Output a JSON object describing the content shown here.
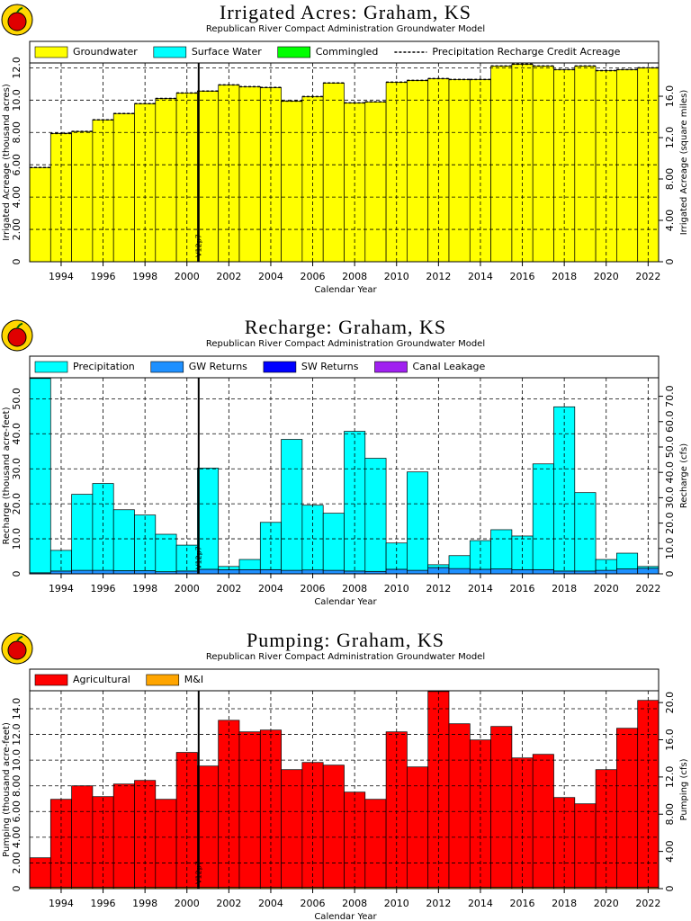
{
  "chart_data": [
    {
      "type": "bar",
      "title": "Irrigated Acres: Graham, KS",
      "subtitle": "Republican River Compact Administration Groundwater Model",
      "xlabel": "Calendar Year",
      "ylabel": "Irrigated Acreage (thousand acres)",
      "y2label": "Irrigated Acreage (square miles)",
      "x": [
        1993,
        1994,
        1995,
        1996,
        1997,
        1998,
        1999,
        2000,
        2001,
        2002,
        2003,
        2004,
        2005,
        2006,
        2007,
        2008,
        2009,
        2010,
        2011,
        2012,
        2013,
        2014,
        2015,
        2016,
        2017,
        2018,
        2019,
        2020,
        2021,
        2022
      ],
      "series": [
        {
          "name": "Groundwater",
          "color": "#ffff00",
          "values": [
            5.83,
            7.94,
            8.06,
            8.78,
            9.17,
            9.78,
            10.1,
            10.44,
            10.56,
            10.94,
            10.83,
            10.78,
            9.94,
            10.22,
            11.06,
            9.83,
            9.89,
            11.11,
            11.22,
            11.33,
            11.28,
            11.28,
            12.11,
            12.22,
            12.11,
            11.89,
            12.11,
            11.83,
            11.89,
            12.0
          ]
        },
        {
          "name": "Surface Water",
          "color": "#00ffff",
          "values": [
            0,
            0,
            0,
            0,
            0,
            0,
            0,
            0,
            0,
            0,
            0,
            0,
            0,
            0,
            0,
            0,
            0,
            0,
            0,
            0,
            0,
            0,
            0,
            0,
            0,
            0,
            0,
            0,
            0,
            0
          ]
        },
        {
          "name": "Commingled",
          "color": "#00ff00",
          "values": [
            0,
            0,
            0,
            0,
            0,
            0,
            0,
            0,
            0,
            0,
            0,
            0,
            0,
            0,
            0,
            0,
            0,
            0,
            0,
            0,
            0,
            0,
            0,
            0,
            0,
            0,
            0,
            0,
            0,
            0
          ]
        },
        {
          "name": "Precipitation Recharge Credit Acreage",
          "color": "#000000",
          "mark": "step-line",
          "values": [
            5.83,
            7.94,
            8.06,
            8.78,
            9.17,
            9.78,
            10.1,
            10.44,
            10.56,
            10.94,
            10.83,
            10.78,
            9.94,
            10.22,
            11.06,
            9.83,
            9.89,
            11.11,
            11.22,
            11.33,
            11.28,
            11.28,
            12.11,
            12.22,
            12.11,
            11.89,
            12.11,
            11.83,
            11.89,
            12.0
          ]
        }
      ],
      "xlim": [
        1992.5,
        2022.5
      ],
      "xticks": [
        1994,
        1996,
        1998,
        2000,
        2002,
        2004,
        2006,
        2008,
        2010,
        2012,
        2014,
        2016,
        2018,
        2020,
        2022
      ],
      "ylim": [
        0,
        12.3
      ],
      "yticks": [
        0,
        {
          "value": 2,
          "label": "2.00"
        },
        {
          "value": 4,
          "label": "4.00"
        },
        {
          "value": 6,
          "label": "6.00"
        },
        {
          "value": 8,
          "label": "8.00"
        },
        {
          "value": 10,
          "label": "10.0"
        },
        {
          "value": 12,
          "label": "12.0"
        }
      ],
      "y2lim": [
        0,
        19.22
      ],
      "y2ticks": [
        0,
        {
          "value": 4,
          "label": "4.00"
        },
        {
          "value": 8,
          "label": "8.00"
        },
        {
          "value": 12,
          "label": "12.0"
        },
        {
          "value": 16,
          "label": "16.0"
        }
      ],
      "grid": true,
      "annotations": [
        {
          "x": 2000.56,
          "text": "V12p7"
        }
      ]
    },
    {
      "type": "bar",
      "title": "Recharge: Graham, KS",
      "subtitle": "Republican River Compact Administration Groundwater Model",
      "xlabel": "Calendar Year",
      "ylabel": "Recharge (thousand acre-feet)",
      "y2label": "Recharge (cfs)",
      "x": [
        1993,
        1994,
        1995,
        1996,
        1997,
        1998,
        1999,
        2000,
        2001,
        2002,
        2003,
        2004,
        2005,
        2006,
        2007,
        2008,
        2009,
        2010,
        2011,
        2012,
        2013,
        2014,
        2015,
        2016,
        2017,
        2018,
        2019,
        2020,
        2021,
        2022
      ],
      "series": [
        {
          "name": "Precipitation",
          "color": "#00ffff",
          "values": [
            55.5,
            5.9,
            21.7,
            24.8,
            17.4,
            15.9,
            10.7,
            7.4,
            28.9,
            0.9,
            2.9,
            13.5,
            37.4,
            18.5,
            16.3,
            39.9,
            32.3,
            7.5,
            28.1,
            0.8,
            3.7,
            8.2,
            11.2,
            9.6,
            30.2,
            46.9,
            22.4,
            3.1,
            4.5,
            0.5
          ]
        },
        {
          "name": "GW Returns",
          "color": "#1e90ff",
          "values": [
            0.3,
            0.8,
            1.0,
            1.0,
            0.9,
            0.9,
            0.6,
            0.8,
            1.3,
            1.2,
            1.2,
            1.2,
            1.0,
            1.1,
            1.0,
            0.8,
            0.7,
            1.3,
            1.0,
            1.8,
            1.5,
            1.3,
            1.4,
            1.2,
            1.2,
            0.8,
            0.8,
            1.0,
            1.4,
            1.6
          ]
        },
        {
          "name": "SW Returns",
          "color": "#0000ff",
          "values": [
            0,
            0,
            0,
            0,
            0,
            0,
            0,
            0,
            0,
            0,
            0,
            0,
            0,
            0,
            0,
            0,
            0,
            0,
            0,
            0,
            0,
            0,
            0,
            0,
            0,
            0,
            0,
            0,
            0,
            0
          ]
        },
        {
          "name": "Canal Leakage",
          "color": "#a020f0",
          "values": [
            0,
            0,
            0,
            0,
            0,
            0,
            0,
            0,
            0,
            0,
            0,
            0,
            0,
            0,
            0,
            0,
            0,
            0,
            0,
            0,
            0,
            0,
            0,
            0,
            0,
            0,
            0,
            0,
            0,
            0
          ]
        }
      ],
      "xlim": [
        1992.5,
        2022.5
      ],
      "xticks": [
        1994,
        1996,
        1998,
        2000,
        2002,
        2004,
        2006,
        2008,
        2010,
        2012,
        2014,
        2016,
        2018,
        2020,
        2022
      ],
      "ylim": [
        0,
        56
      ],
      "yticks": [
        0,
        {
          "value": 10,
          "label": "10.0"
        },
        {
          "value": 20,
          "label": "20.0"
        },
        {
          "value": 30,
          "label": "30.0"
        },
        {
          "value": 40,
          "label": "40.0"
        },
        {
          "value": 50,
          "label": "50.0"
        }
      ],
      "y2lim": [
        0,
        77.3
      ],
      "y2ticks": [
        0,
        {
          "value": 10,
          "label": "10.0"
        },
        {
          "value": 20,
          "label": "20.0"
        },
        {
          "value": 30,
          "label": "30.0"
        },
        {
          "value": 40,
          "label": "40.0"
        },
        {
          "value": 50,
          "label": "50.0"
        },
        {
          "value": 60,
          "label": "60.0"
        },
        {
          "value": 70,
          "label": "70.0"
        }
      ],
      "grid": true,
      "annotations": [
        {
          "x": 2000.56,
          "text": "V12p7"
        }
      ]
    },
    {
      "type": "bar",
      "title": "Pumping: Graham, KS",
      "subtitle": "Republican River Compact Administration Groundwater Model",
      "xlabel": "Calendar Year",
      "ylabel": "Pumping (thousand acre-feet)",
      "y2label": "Pumping (cfs)",
      "x": [
        1993,
        1994,
        1995,
        1996,
        1997,
        1998,
        1999,
        2000,
        2001,
        2002,
        2003,
        2004,
        2005,
        2006,
        2007,
        2008,
        2009,
        2010,
        2011,
        2012,
        2013,
        2014,
        2015,
        2016,
        2017,
        2018,
        2019,
        2020,
        2021,
        2022
      ],
      "series": [
        {
          "name": "Agricultural",
          "color": "#ff0000",
          "values": [
            2.3,
            6.85,
            7.9,
            7.06,
            8.04,
            8.32,
            6.85,
            10.5,
            9.44,
            13.0,
            12.1,
            12.24,
            9.16,
            9.72,
            9.51,
            7.41,
            6.85,
            12.1,
            9.37,
            15.24,
            12.73,
            11.47,
            12.52,
            10.07,
            10.35,
            6.99,
            6.5,
            9.16,
            12.38,
            14.55
          ]
        },
        {
          "name": "M&I",
          "color": "#ffa500",
          "values": [
            0.1,
            0.1,
            0.1,
            0.1,
            0.1,
            0.1,
            0.1,
            0.1,
            0.1,
            0.1,
            0.1,
            0.1,
            0.1,
            0.1,
            0.1,
            0.1,
            0.1,
            0.1,
            0.1,
            0.1,
            0.1,
            0.1,
            0.1,
            0.1,
            0.1,
            0.1,
            0.1,
            0.1,
            0.1,
            0.1
          ]
        }
      ],
      "xlim": [
        1992.5,
        2022.5
      ],
      "xticks": [
        1994,
        1996,
        1998,
        2000,
        2002,
        2004,
        2006,
        2008,
        2010,
        2012,
        2014,
        2016,
        2018,
        2020,
        2022
      ],
      "ylim": [
        0,
        15.4
      ],
      "yticks": [
        0,
        {
          "value": 2,
          "label": "2.00"
        },
        {
          "value": 4,
          "label": "4.00"
        },
        {
          "value": 6,
          "label": "6.00"
        },
        {
          "value": 8,
          "label": "8.00"
        },
        {
          "value": 10,
          "label": "10.0"
        },
        {
          "value": 12,
          "label": "12.0"
        },
        {
          "value": 14,
          "label": "14.0"
        }
      ],
      "y2lim": [
        0,
        21.27
      ],
      "y2ticks": [
        0,
        {
          "value": 4,
          "label": "4.00"
        },
        {
          "value": 8,
          "label": "8.00"
        },
        {
          "value": 12,
          "label": "12.0"
        },
        {
          "value": 16,
          "label": "16.0"
        },
        {
          "value": 20,
          "label": "20.0"
        }
      ],
      "grid": true,
      "annotations": [
        {
          "x": 2000.56,
          "text": "V12p7"
        }
      ]
    }
  ]
}
